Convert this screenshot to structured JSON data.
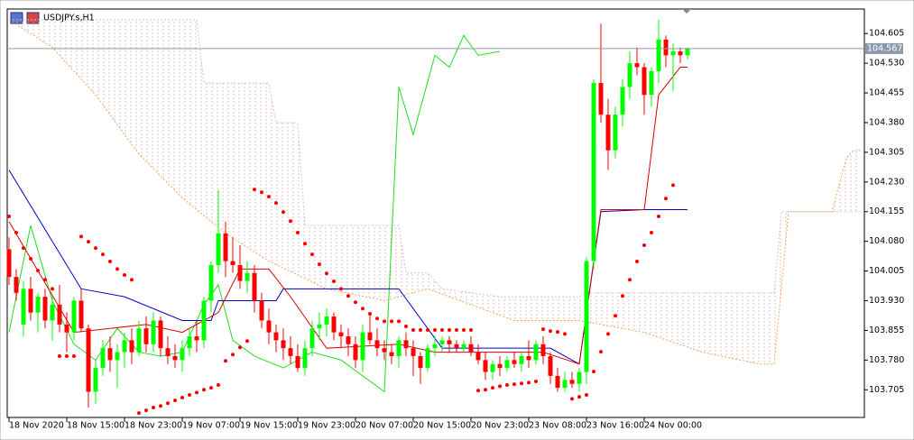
{
  "chart_data": {
    "type": "candlestick",
    "title": "USDJPY.s,H1",
    "x": [
      0,
      1,
      2,
      3,
      4,
      5,
      6,
      7,
      8,
      9,
      10,
      11,
      12,
      13,
      14,
      15,
      16,
      17,
      18,
      19,
      20,
      21,
      22,
      23,
      24,
      25,
      26,
      27,
      28,
      29,
      30,
      31,
      32,
      33,
      34,
      35,
      36,
      37,
      38,
      39,
      40,
      41,
      42,
      43,
      44,
      45,
      46,
      47,
      48,
      49,
      50,
      51,
      52,
      53,
      54,
      55,
      56,
      57,
      58,
      59,
      60,
      61,
      62,
      63,
      64,
      65,
      66,
      67,
      68,
      69,
      70,
      71,
      72,
      73,
      74,
      75,
      76,
      77,
      78,
      79,
      80,
      81,
      82,
      83,
      84,
      85,
      86,
      87,
      88,
      89,
      90,
      91,
      92,
      93,
      94
    ],
    "open": [
      104.06,
      103.99,
      103.87,
      103.96,
      103.9,
      103.94,
      103.88,
      103.92,
      103.87,
      103.85,
      103.93,
      103.86,
      103.7,
      103.76,
      103.81,
      103.78,
      103.8,
      103.83,
      103.8,
      103.86,
      103.82,
      103.88,
      103.81,
      103.79,
      103.78,
      103.81,
      103.84,
      103.83,
      103.93,
      104.02,
      104.1,
      104.03,
      104.02,
      103.98,
      104.0,
      103.93,
      103.88,
      103.85,
      103.83,
      103.81,
      103.79,
      103.76,
      103.81,
      103.86,
      103.87,
      103.89,
      103.85,
      103.84,
      103.82,
      103.78,
      103.85,
      103.83,
      103.81,
      103.8,
      103.79,
      103.83,
      103.81,
      103.79,
      103.76,
      103.81,
      103.82,
      103.83,
      103.82,
      103.81,
      103.82,
      103.8,
      103.78,
      103.75,
      103.77,
      103.76,
      103.78,
      103.77,
      103.79,
      103.78,
      103.82,
      103.79,
      103.74,
      103.71,
      103.73,
      103.72,
      103.75,
      104.03,
      104.48,
      104.4,
      104.31,
      104.4,
      104.47,
      104.53,
      104.52,
      104.45,
      104.51,
      104.59,
      104.55,
      104.56,
      104.55
    ],
    "high": [
      104.09,
      104.01,
      103.98,
      103.99,
      103.95,
      103.96,
      103.94,
      103.97,
      103.9,
      103.94,
      103.96,
      103.87,
      103.78,
      103.83,
      103.84,
      103.82,
      103.85,
      103.86,
      103.88,
      103.89,
      103.9,
      103.89,
      103.84,
      103.82,
      103.83,
      103.86,
      103.88,
      103.94,
      104.03,
      104.21,
      104.13,
      104.09,
      104.07,
      104.03,
      104.02,
      103.95,
      103.91,
      103.87,
      103.86,
      103.84,
      103.82,
      103.83,
      103.88,
      103.9,
      103.91,
      103.9,
      103.87,
      103.86,
      103.84,
      103.87,
      103.9,
      103.86,
      103.83,
      103.82,
      103.84,
      103.85,
      103.83,
      103.8,
      103.82,
      103.84,
      103.84,
      103.84,
      103.83,
      103.83,
      103.84,
      103.82,
      103.8,
      103.78,
      103.79,
      103.79,
      103.8,
      103.8,
      103.83,
      103.83,
      103.84,
      103.8,
      103.76,
      103.75,
      103.75,
      103.76,
      104.04,
      104.49,
      104.63,
      104.44,
      104.42,
      104.49,
      104.56,
      104.57,
      104.53,
      104.52,
      104.64,
      104.6,
      104.58,
      104.57,
      104.57
    ],
    "low": [
      103.97,
      103.93,
      103.84,
      103.88,
      103.85,
      103.86,
      103.83,
      103.85,
      103.8,
      103.83,
      103.85,
      103.66,
      103.67,
      103.74,
      103.75,
      103.71,
      103.76,
      103.77,
      103.79,
      103.8,
      103.8,
      103.79,
      103.77,
      103.76,
      103.75,
      103.79,
      103.8,
      103.81,
      103.9,
      104.0,
      103.99,
      104.0,
      103.96,
      103.95,
      103.9,
      103.86,
      103.82,
      103.8,
      103.78,
      103.77,
      103.75,
      103.74,
      103.79,
      103.83,
      103.84,
      103.83,
      103.81,
      103.79,
      103.76,
      103.75,
      103.82,
      103.79,
      103.78,
      103.77,
      103.76,
      103.79,
      103.74,
      103.72,
      103.75,
      103.79,
      103.8,
      103.8,
      103.8,
      103.8,
      103.79,
      103.77,
      103.73,
      103.73,
      103.74,
      103.75,
      103.76,
      103.75,
      103.76,
      103.77,
      103.77,
      103.72,
      103.7,
      103.7,
      103.71,
      103.7,
      103.72,
      104.01,
      104.38,
      104.26,
      104.29,
      104.37,
      104.44,
      104.5,
      104.4,
      104.42,
      104.48,
      104.52,
      104.46,
      104.53,
      104.54
    ],
    "close": [
      103.99,
      103.95,
      103.96,
      103.9,
      103.94,
      103.88,
      103.92,
      103.87,
      103.85,
      103.93,
      103.86,
      103.7,
      103.76,
      103.81,
      103.78,
      103.8,
      103.83,
      103.8,
      103.86,
      103.82,
      103.88,
      103.81,
      103.79,
      103.78,
      103.81,
      103.84,
      103.83,
      103.93,
      104.02,
      104.1,
      104.03,
      104.02,
      103.98,
      104.0,
      103.93,
      103.88,
      103.85,
      103.83,
      103.81,
      103.79,
      103.76,
      103.81,
      103.86,
      103.87,
      103.89,
      103.85,
      103.84,
      103.82,
      103.78,
      103.85,
      103.83,
      103.81,
      103.8,
      103.79,
      103.83,
      103.81,
      103.79,
      103.76,
      103.81,
      103.82,
      103.83,
      103.82,
      103.81,
      103.82,
      103.8,
      103.78,
      103.75,
      103.77,
      103.76,
      103.78,
      103.77,
      103.79,
      103.78,
      103.82,
      103.79,
      103.74,
      103.71,
      103.73,
      103.72,
      103.75,
      104.03,
      104.48,
      104.4,
      104.31,
      104.4,
      104.47,
      104.53,
      104.52,
      104.45,
      104.51,
      104.59,
      104.55,
      104.56,
      104.55,
      104.567
    ],
    "up_color": "#00ff00",
    "down_color": "#ff0000",
    "sar": {
      "color": "#ff0000",
      "values": [
        104.143,
        104.102,
        104.063,
        104.036,
        104.006,
        103.983,
        103.96,
        103.79,
        103.79,
        103.79,
        104.092,
        104.079,
        104.063,
        104.047,
        104.029,
        104.01,
        103.995,
        103.983,
        103.646,
        103.653,
        103.66,
        103.664,
        103.671,
        103.678,
        103.685,
        103.692,
        103.698,
        103.705,
        103.71,
        103.717,
        103.778,
        103.794,
        103.812,
        103.828,
        104.211,
        104.204,
        104.193,
        104.177,
        104.154,
        104.131,
        104.102,
        104.074,
        104.047,
        104.022,
        103.999,
        103.979,
        103.96,
        103.942,
        103.926,
        103.91,
        103.897,
        103.885,
        103.878,
        103.878,
        103.878,
        103.865,
        103.856,
        103.856,
        103.856,
        103.856,
        103.856,
        103.856,
        103.856,
        103.856,
        103.856,
        103.703,
        103.705,
        103.71,
        103.714,
        103.717,
        103.719,
        103.721,
        103.723,
        103.726,
        103.858,
        103.853,
        103.851,
        103.846,
        103.682,
        103.687,
        103.692,
        103.751,
        103.801,
        103.846,
        103.892,
        103.942,
        103.983,
        104.029,
        104.07,
        104.102,
        104.143,
        104.188,
        104.222,
        null,
        null
      ]
    },
    "lines": [
      {
        "color": "#f4a460",
        "dash": true,
        "x": [
          0,
          6,
          12,
          18,
          24,
          30,
          36,
          44,
          52,
          58,
          64,
          70,
          79,
          88,
          96,
          104,
          106,
          108,
          110,
          114,
          116,
          117,
          118
        ],
        "values": [
          104.64,
          104.57,
          104.45,
          104.3,
          104.19,
          104.1,
          104.03,
          103.96,
          103.93,
          103.96,
          103.92,
          103.88,
          103.88,
          103.85,
          103.8,
          103.77,
          103.77,
          104.155,
          104.155,
          104.155,
          104.29,
          104.31,
          104.31
        ]
      },
      {
        "color": "#d8bfd8",
        "dash": true,
        "x": [
          0,
          26,
          27,
          36,
          37,
          40,
          41,
          54,
          55,
          58,
          60,
          68,
          79,
          80,
          106,
          107,
          118
        ],
        "values": [
          104.64,
          104.64,
          104.48,
          104.48,
          104.38,
          104.38,
          104.12,
          104.12,
          104.0,
          104.0,
          103.96,
          103.94,
          103.94,
          103.95,
          103.95,
          104.155,
          104.155
        ]
      },
      {
        "color": "#22dd22",
        "dash": false,
        "x": [
          0,
          3,
          6,
          9,
          12,
          15,
          18,
          21,
          24,
          27,
          29,
          31,
          34,
          38,
          42,
          46,
          49,
          52,
          54,
          56,
          59,
          61,
          63,
          65,
          68
        ],
        "values": [
          103.85,
          104.12,
          103.93,
          103.82,
          103.78,
          103.86,
          103.8,
          103.79,
          103.8,
          103.92,
          103.97,
          103.83,
          103.79,
          103.76,
          103.8,
          103.78,
          103.74,
          103.7,
          104.47,
          104.35,
          104.55,
          104.52,
          104.6,
          104.55,
          104.56
        ]
      },
      {
        "color": "#0000cd",
        "dash": false,
        "x": [
          0,
          10,
          16,
          24,
          28,
          29,
          37,
          38,
          54,
          60,
          75,
          79,
          82,
          88,
          94
        ],
        "values": [
          104.26,
          103.96,
          103.94,
          103.88,
          103.88,
          103.93,
          103.93,
          103.96,
          103.96,
          103.81,
          103.81,
          103.77,
          104.155,
          104.16,
          104.16
        ]
      },
      {
        "color": "#dd0000",
        "dash": false,
        "x": [
          0,
          9,
          19,
          24,
          29,
          32,
          36,
          39,
          44,
          54,
          59,
          74,
          79,
          82,
          88,
          90,
          93,
          94
        ],
        "values": [
          104.13,
          103.85,
          103.87,
          103.85,
          103.9,
          104.01,
          104.01,
          103.94,
          103.81,
          103.82,
          103.8,
          103.8,
          103.77,
          104.16,
          104.16,
          104.45,
          104.52,
          104.52
        ]
      }
    ],
    "cloud_color": "#d9aaaa",
    "xlim": [
      -0.25,
      118.5
    ],
    "xticks": [
      {
        "value": 0,
        "label": "18 Nov 2020"
      },
      {
        "value": 8,
        "label": "18 Nov 15:00"
      },
      {
        "value": 16,
        "label": "18 Nov 23:00"
      },
      {
        "value": 24,
        "label": "19 Nov 07:00"
      },
      {
        "value": 32,
        "label": "19 Nov 15:00"
      },
      {
        "value": 40,
        "label": "19 Nov 23:00"
      },
      {
        "value": 48,
        "label": "20 Nov 07:00"
      },
      {
        "value": 56,
        "label": "20 Nov 15:00"
      },
      {
        "value": 64,
        "label": "20 Nov 23:00"
      },
      {
        "value": 72,
        "label": "23 Nov 08:00"
      },
      {
        "value": 80,
        "label": "23 Nov 16:00"
      },
      {
        "value": 88,
        "label": "24 Nov 00:00"
      }
    ],
    "ylim": [
      103.635,
      104.667
    ],
    "yticks": [
      104.605,
      {
        "value": 104.53,
        "label": "104.530"
      },
      104.455,
      {
        "value": 104.38,
        "label": "104.380"
      },
      104.305,
      {
        "value": 104.23,
        "label": "104.230"
      },
      104.155,
      {
        "value": 104.08,
        "label": "104.080"
      },
      104.005,
      {
        "value": 103.93,
        "label": "103.930"
      },
      103.855,
      {
        "value": 103.78,
        "label": "103.780"
      },
      103.705
    ],
    "current_price": 104.567,
    "current_color": "#8a9aaa"
  }
}
